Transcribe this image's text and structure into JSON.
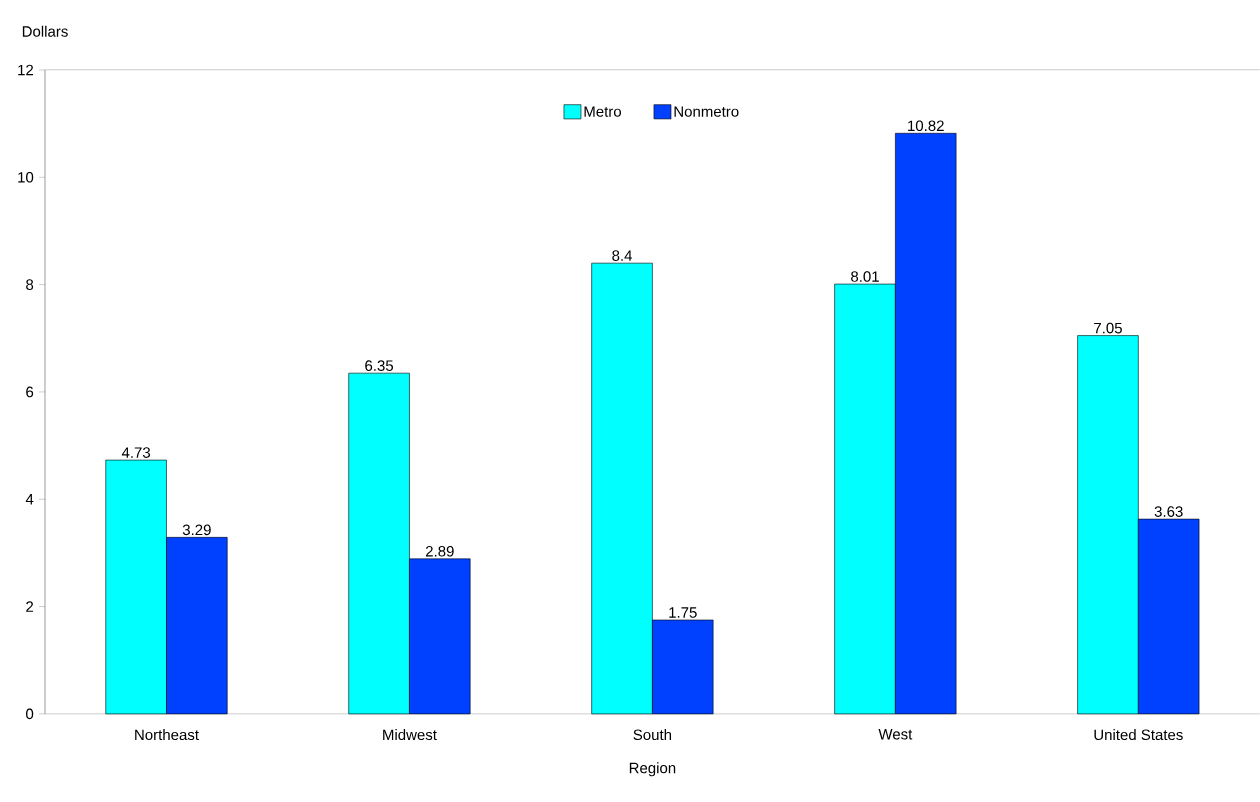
{
  "chart_data": {
    "type": "bar",
    "xlabel": "Region",
    "ylabel": "Dollars",
    "categories": [
      "Northeast",
      "Midwest",
      "South",
      "West",
      "United States"
    ],
    "series": [
      {
        "name": "Metro",
        "color": "#00ffff",
        "values": [
          4.73,
          6.35,
          8.4,
          8.01,
          7.05
        ],
        "value_labels": [
          "4.73",
          "6.35",
          "8.4",
          "8.01",
          "7.05"
        ]
      },
      {
        "name": "Nonmetro",
        "color": "#0040ff",
        "values": [
          3.29,
          2.89,
          1.75,
          10.82,
          3.63
        ],
        "value_labels": [
          "3.29",
          "2.89",
          "1.75",
          "10.82",
          "3.63"
        ]
      }
    ],
    "ylim": [
      0,
      12
    ],
    "yticks": [
      0,
      2,
      4,
      6,
      8,
      10,
      12
    ],
    "legend": "top",
    "grid": false
  }
}
